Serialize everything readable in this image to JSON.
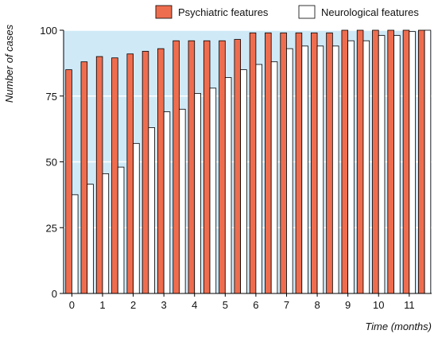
{
  "chart_data": {
    "type": "bar",
    "xlabel": "Time (months)",
    "ylabel": "Number of cases",
    "ylim": [
      0,
      100
    ],
    "y_ticks": [
      "0",
      "25",
      "50",
      "75",
      "100"
    ],
    "x_tick_labels": [
      "0",
      "1",
      "2",
      "3",
      "4",
      "5",
      "6",
      "7",
      "8",
      "9",
      "10",
      "11"
    ],
    "x_tick_positions": [
      0,
      2,
      4,
      6,
      8,
      10,
      12,
      14,
      16,
      18,
      20,
      22
    ],
    "grid": "horizontal",
    "plot_background": "#cfe9f7",
    "legend_position": "top-right",
    "series": [
      {
        "name": "Psychiatric features",
        "color": "#ef6d4f",
        "values": [
          85,
          88,
          90,
          89.5,
          91,
          92,
          93,
          96,
          96,
          96,
          96,
          96.5,
          99,
          99,
          99,
          99,
          99,
          99,
          100,
          100,
          100,
          100,
          100,
          100
        ]
      },
      {
        "name": "Neurological features",
        "color": "#ffffff",
        "values": [
          37.5,
          41.5,
          45.5,
          48,
          57,
          63,
          69,
          70,
          76,
          78,
          82,
          85,
          87,
          88,
          93,
          94,
          94,
          94,
          96,
          96,
          98,
          98,
          99.5,
          100
        ]
      }
    ]
  }
}
